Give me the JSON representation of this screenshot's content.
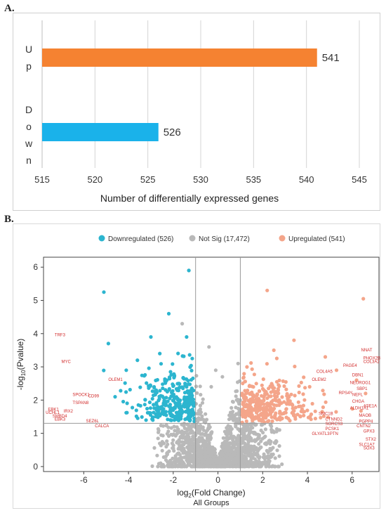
{
  "panel_a_label": "A.",
  "panel_b_label": "B.",
  "colors": {
    "up_bar": "#f58231",
    "down_bar": "#1ab2ea",
    "down_points": "#2cb5cf",
    "notsig_points": "#b9b9b9",
    "up_points": "#f4a58a",
    "gene_labels": "#d12a2a"
  },
  "chart_data": [
    {
      "type": "bar",
      "orientation": "horizontal",
      "categories": [
        "Up",
        "Down"
      ],
      "values": [
        541,
        526
      ],
      "value_labels": [
        "541",
        "526"
      ],
      "xlabel": "Number of differentially expressed genes",
      "xlim": [
        515,
        545
      ],
      "xticks": [
        515,
        520,
        525,
        530,
        535,
        540,
        545
      ],
      "grid": "vertical"
    },
    {
      "type": "scatter",
      "title": "",
      "xlabel": "log2(Fold Change)",
      "ylabel": "-log10(Pvalue)",
      "caption": "All Groups",
      "xlim": [
        -7.8,
        7.2
      ],
      "ylim": [
        -0.15,
        6.3
      ],
      "xticks": [
        -6,
        -4,
        -2,
        0,
        2,
        4,
        6
      ],
      "yticks": [
        0,
        1,
        2,
        3,
        4,
        5,
        6
      ],
      "thresholds": {
        "fold_change": [
          -1,
          1
        ],
        "pvalue": 1.3
      },
      "legend_position": "top",
      "series": [
        {
          "name": "Downregulated (526)",
          "count": 526
        },
        {
          "name": "Not Sig (17,472)",
          "count": 17472
        },
        {
          "name": "Upregulated (541)",
          "count": 541
        }
      ],
      "labeled_genes": [
        {
          "gene": "TRF3",
          "x": -7.3,
          "y": 3.92
        },
        {
          "gene": "MYC",
          "x": -7.0,
          "y": 3.12
        },
        {
          "gene": "OLEM1",
          "x": -4.9,
          "y": 2.58
        },
        {
          "gene": "SPOCK1",
          "x": -6.5,
          "y": 2.12
        },
        {
          "gene": "CD99",
          "x": -5.8,
          "y": 2.08
        },
        {
          "gene": "TSPAN8",
          "x": -6.5,
          "y": 1.88
        },
        {
          "gene": "EBK1",
          "x": -7.6,
          "y": 1.68
        },
        {
          "gene": "UCHL1",
          "x": -7.7,
          "y": 1.58
        },
        {
          "gene": "IRX2",
          "x": -6.9,
          "y": 1.63
        },
        {
          "gene": "SMBD4",
          "x": -7.4,
          "y": 1.48
        },
        {
          "gene": "EBK3",
          "x": -7.3,
          "y": 1.38
        },
        {
          "gene": "SEZ6L",
          "x": -5.9,
          "y": 1.33
        },
        {
          "gene": "CALCA",
          "x": -5.5,
          "y": 1.18
        },
        {
          "gene": "NNAT",
          "x": 6.4,
          "y": 3.47
        },
        {
          "gene": "PHOX2B",
          "x": 6.5,
          "y": 3.22
        },
        {
          "gene": "COL3A2",
          "x": 6.5,
          "y": 3.12
        },
        {
          "gene": "PAGE4",
          "x": 5.6,
          "y": 3.0
        },
        {
          "gene": "COL4A5",
          "x": 4.4,
          "y": 2.82
        },
        {
          "gene": "OLEM2",
          "x": 4.2,
          "y": 2.58
        },
        {
          "gene": "DBN1",
          "x": 6.0,
          "y": 2.72
        },
        {
          "gene": "NEUROG1",
          "x": 5.9,
          "y": 2.48
        },
        {
          "gene": "SBP1",
          "x": 6.2,
          "y": 2.3
        },
        {
          "gene": "RPS4Y",
          "x": 5.4,
          "y": 2.18
        },
        {
          "gene": "NEFL",
          "x": 6.0,
          "y": 2.12
        },
        {
          "gene": "CHGA",
          "x": 6.0,
          "y": 1.92
        },
        {
          "gene": "ALDH1A1",
          "x": 5.9,
          "y": 1.72
        },
        {
          "gene": "ASE1A",
          "x": 6.5,
          "y": 1.78
        },
        {
          "gene": "SMC1B",
          "x": 4.5,
          "y": 1.55
        },
        {
          "gene": "MAOB",
          "x": 6.3,
          "y": 1.5
        },
        {
          "gene": "CTNND2",
          "x": 4.8,
          "y": 1.38
        },
        {
          "gene": "PGPP4",
          "x": 6.3,
          "y": 1.32
        },
        {
          "gene": "SORCS3",
          "x": 4.8,
          "y": 1.25
        },
        {
          "gene": "CNTN2",
          "x": 6.2,
          "y": 1.18
        },
        {
          "gene": "PCSK1",
          "x": 4.8,
          "y": 1.1
        },
        {
          "gene": "GLYATL3",
          "x": 4.2,
          "y": 0.95
        },
        {
          "gene": "PTN",
          "x": 5.0,
          "y": 0.95
        },
        {
          "gene": "GPX3",
          "x": 6.5,
          "y": 1.02
        },
        {
          "gene": "STX2",
          "x": 6.6,
          "y": 0.78
        },
        {
          "gene": "SLC1A7",
          "x": 6.3,
          "y": 0.62
        },
        {
          "gene": "SOX3",
          "x": 6.5,
          "y": 0.52
        }
      ]
    }
  ]
}
